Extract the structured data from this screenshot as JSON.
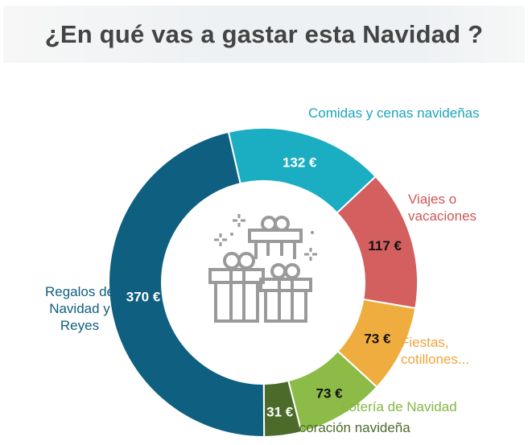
{
  "title": "¿En qué vas a gastar esta Navidad ?",
  "chart_data": {
    "type": "pie",
    "variant": "donut",
    "title": "¿En qué vas a gastar esta Navidad ?",
    "unit": "€",
    "categories": [
      "Comidas y cenas navideñas",
      "Viajes o vacaciones",
      "Fiestas, cotillones...",
      "Lotería de Navidad",
      "Decoración navideña",
      "Regalos de Navidad y Reyes"
    ],
    "values": [
      132,
      117,
      73,
      73,
      31,
      370
    ],
    "value_labels": [
      "132 €",
      "117 €",
      "73 €",
      "73 €",
      "31 €",
      "370 €"
    ],
    "colors": [
      "#1badc1",
      "#d35f5f",
      "#f0ad3f",
      "#8cbb47",
      "#4c6b2b",
      "#0f5f80"
    ],
    "label_colors": [
      "#1ba5ba",
      "#cf5656",
      "#eea53b",
      "#86b644",
      "#4c6b2b",
      "#0f5f80"
    ],
    "value_label_colors": [
      "#ffffff",
      "#111111",
      "#111111",
      "#111111",
      "#ffffff",
      "#ffffff"
    ]
  }
}
